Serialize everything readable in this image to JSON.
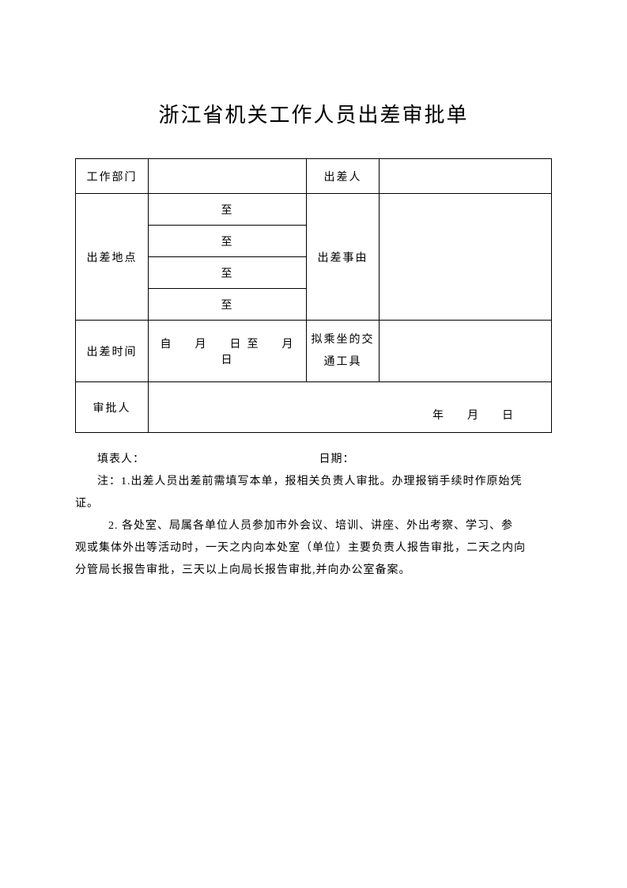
{
  "title": "浙江省机关工作人员出差审批单",
  "labels": {
    "department": "工作部门",
    "traveler": "出差人",
    "location": "出差地点",
    "reason": "出差事由",
    "time": "出差时间",
    "transport": "拟乘坐的交通工具",
    "approver": "审批人"
  },
  "values": {
    "department": "",
    "traveler": "",
    "loc1": "至",
    "loc2": "至",
    "loc3": "至",
    "loc4": "至",
    "reason": "",
    "time": "自　月　日至　月　日",
    "transport": "",
    "approveDate": "年　月　日"
  },
  "footer": {
    "filler": "填表人：",
    "date": "日期："
  },
  "notes": {
    "line1": "注：1.出差人员出差前需填写本单，报相关负责人审批。办理报销手续时作原始凭",
    "line1b": "证。",
    "line2": "2. 各处室、局属各单位人员参加市外会议、培训、讲座、外出考察、学习、参",
    "line2b": "观或集体外出等活动时，一天之内向本处室（单位）主要负责人报告审批，二天之内向",
    "line2c": "分管局长报告审批，三天以上向局长报告审批,并向办公室备案。"
  }
}
